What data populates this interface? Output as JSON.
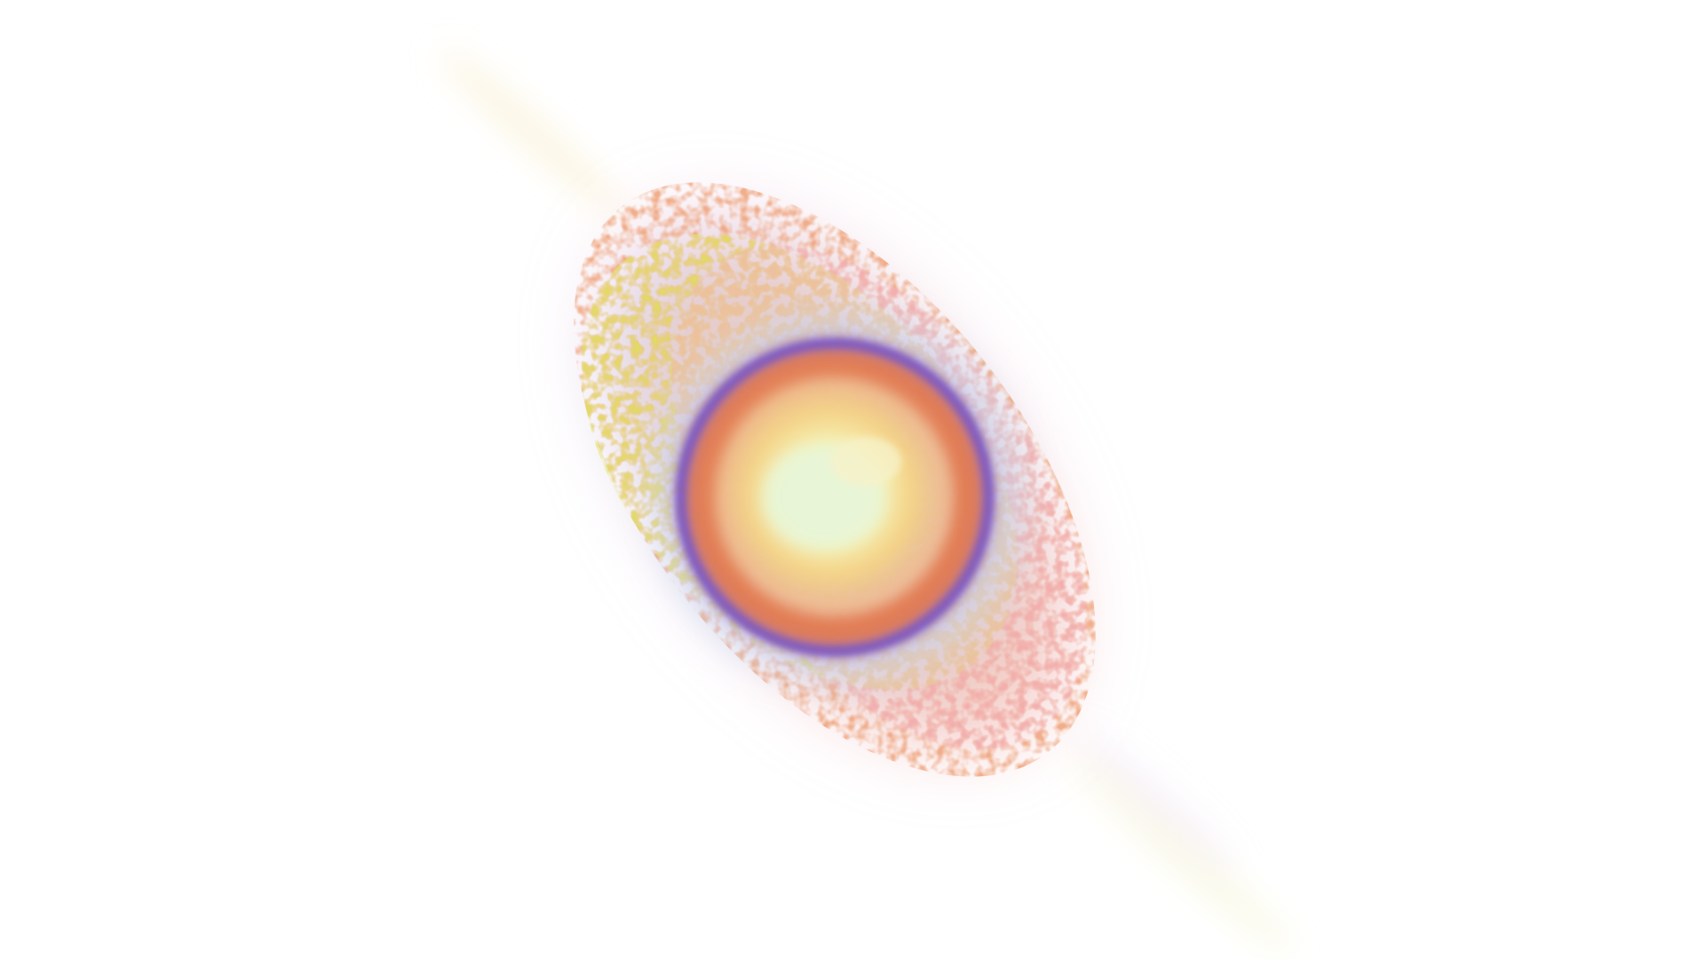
{
  "scene": {
    "background": "#ffffff",
    "artwork": "abstract-nebula-ring",
    "palette": {
      "outer_warm": "#f2b99a",
      "outer_yellow": "#dfe85a",
      "outer_blue": "#c6d9f4",
      "outer_pink": "#f4c7dc",
      "ring_violet": "#6a4fd2",
      "ring_orange": "#e77a4a",
      "inner_cream": "#f7f2c9",
      "core_glow": "#e8f6d8"
    }
  }
}
